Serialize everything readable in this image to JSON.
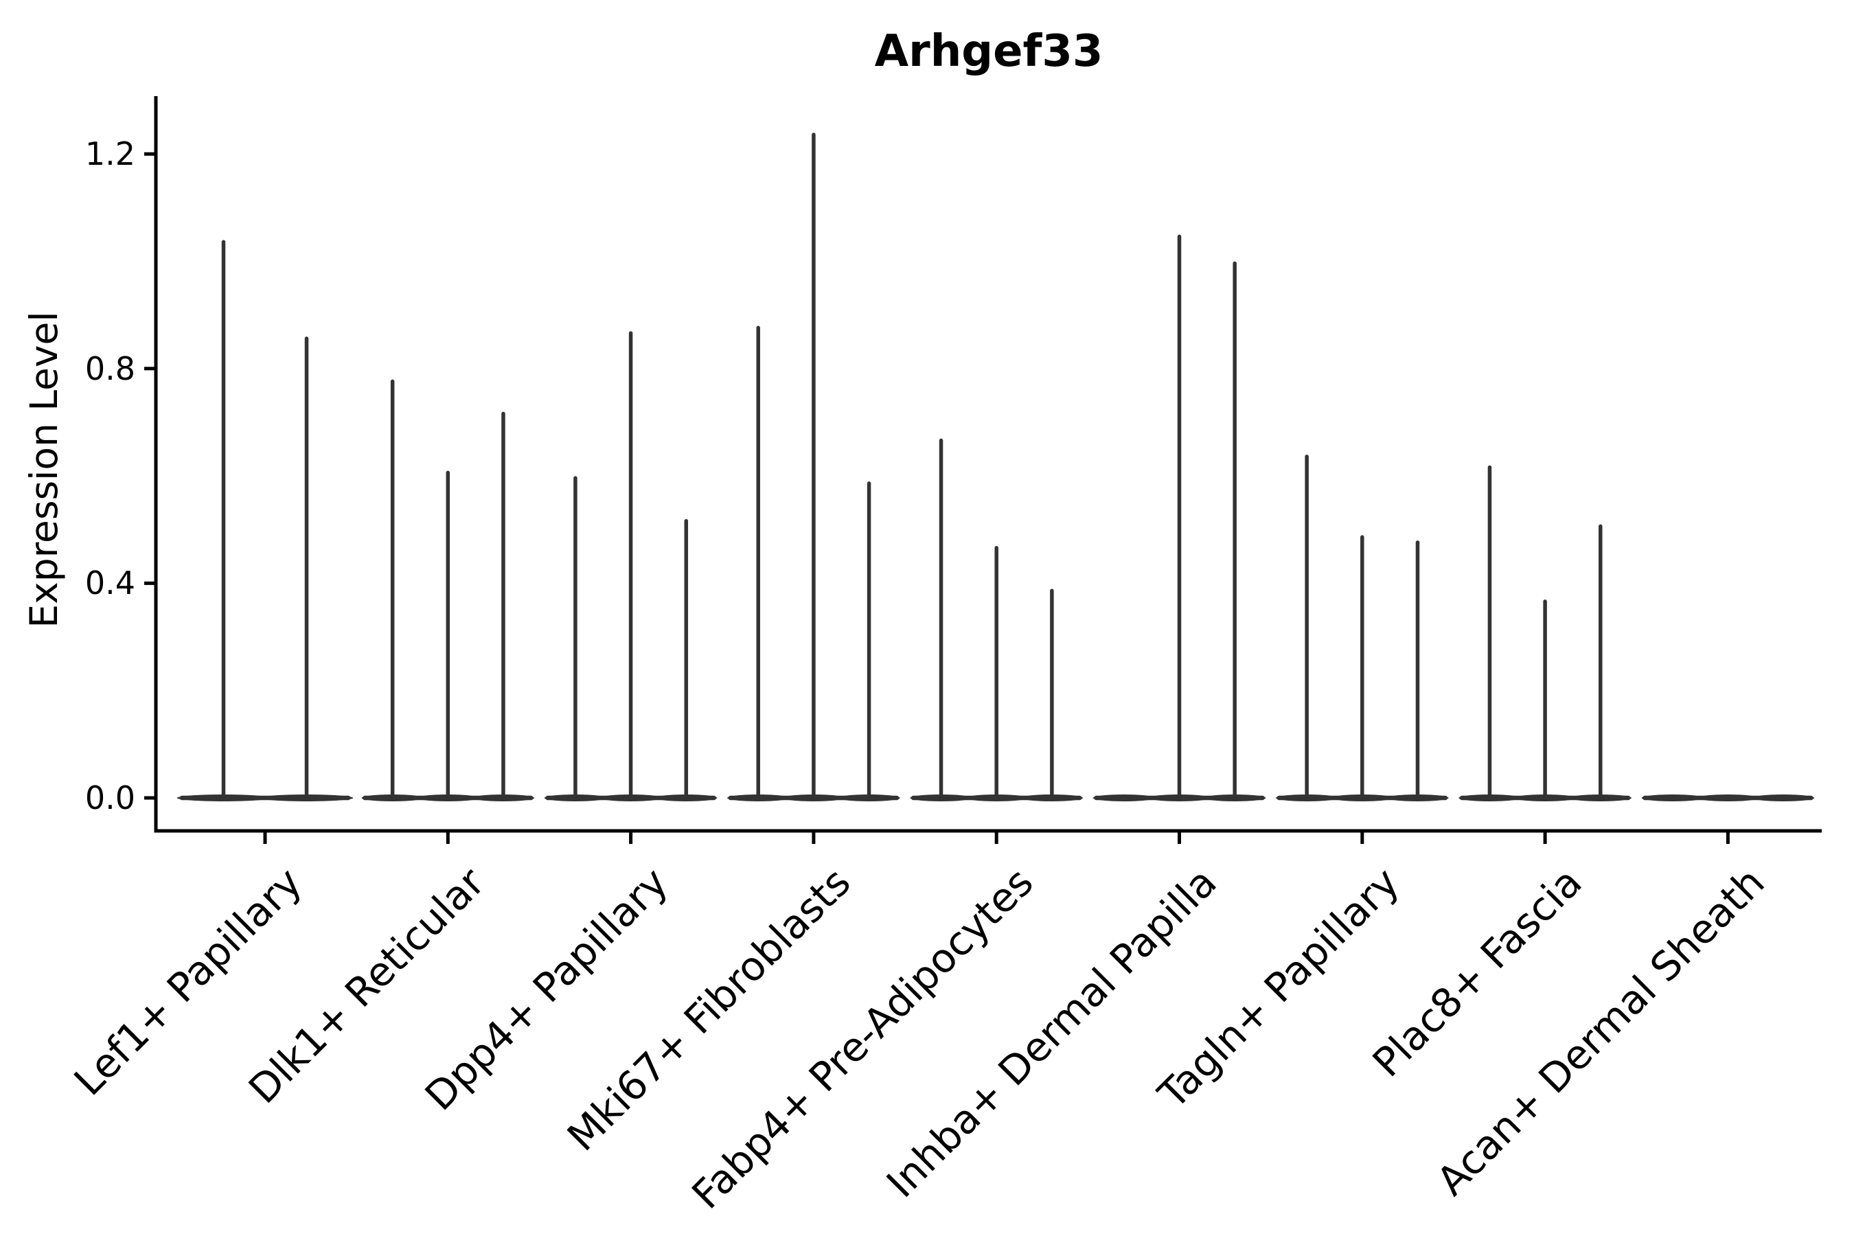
{
  "chart_data": {
    "type": "violin",
    "title": "Arhgef33",
    "xlabel": "",
    "ylabel": "Expression Level",
    "ylim": [
      0,
      1.31
    ],
    "yticks": [
      0.0,
      0.4,
      0.8,
      1.2
    ],
    "grid": false,
    "legend": null,
    "categories": [
      "Lef1+ Papillary",
      "Dlk1+ Reticular",
      "Dpp4+ Papillary",
      "Mki67+ Fibroblasts",
      "Fabp4+ Pre-Adipocytes",
      "Inhba+ Dermal Papilla",
      "Tagln+ Papillary",
      "Plac8+ Fascia",
      "Acan+ Dermal Sheath"
    ],
    "groups": [
      {
        "label": "Lef1+ Papillary",
        "violin_maxima": [
          1.04,
          0.86
        ]
      },
      {
        "label": "Dlk1+ Reticular",
        "violin_maxima": [
          0.78,
          0.61,
          0.72
        ]
      },
      {
        "label": "Dpp4+ Papillary",
        "violin_maxima": [
          0.6,
          0.87,
          0.52
        ]
      },
      {
        "label": "Mki67+ Fibroblasts",
        "violin_maxima": [
          0.88,
          1.24,
          0.59
        ]
      },
      {
        "label": "Fabp4+ Pre-Adipocytes",
        "violin_maxima": [
          0.67,
          0.47,
          0.39
        ]
      },
      {
        "label": "Inhba+ Dermal Papilla",
        "violin_maxima": [
          0.0,
          1.05,
          1.0
        ]
      },
      {
        "label": "Tagln+ Papillary",
        "violin_maxima": [
          0.64,
          0.49,
          0.48
        ]
      },
      {
        "label": "Plac8+ Fascia",
        "violin_maxima": [
          0.62,
          0.37,
          0.51
        ]
      },
      {
        "label": "Acan+ Dermal Sheath",
        "violin_maxima": [
          0.0,
          0.0,
          0.0
        ]
      }
    ],
    "colors": {
      "violin": "#333333",
      "spine": "#000000",
      "text": "#000000",
      "background": "#ffffff"
    }
  }
}
